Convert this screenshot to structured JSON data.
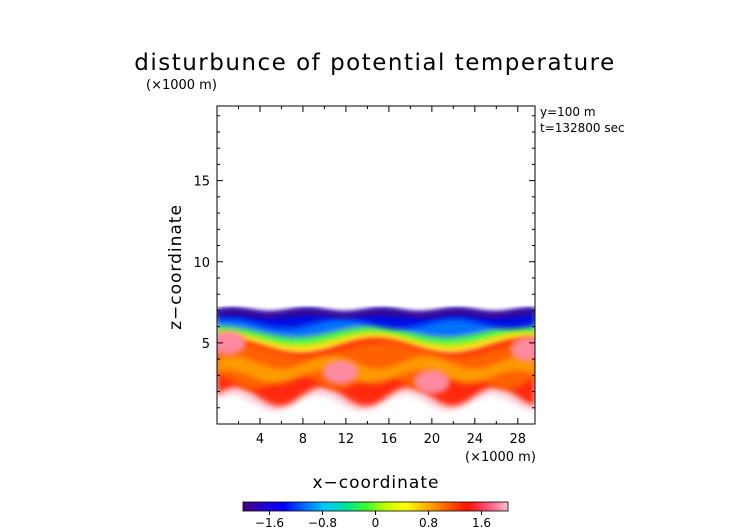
{
  "chart_data": {
    "type": "heatmap",
    "title": "disturbunce of potential temperature",
    "unit_note": "(×1000 m)",
    "annotations": [
      "y=100 m",
      "t=132800 sec"
    ],
    "xlabel": "x−coordinate",
    "xunit": "(×1000 m)",
    "ylabel": "z−coordinate",
    "xlim": [
      0,
      29.6
    ],
    "ylim": [
      0,
      19.6
    ],
    "xticks": [
      4,
      8,
      12,
      16,
      20,
      24,
      28
    ],
    "xtick_labels": [
      "4",
      "8",
      "12",
      "16",
      "20",
      "24",
      "28"
    ],
    "yticks": [
      5,
      10,
      15
    ],
    "ytick_labels": [
      "5",
      "10",
      "15"
    ],
    "colorbar": {
      "range": [
        -2.0,
        2.0
      ],
      "ticks": [
        -1.6,
        -0.8,
        0,
        0.8,
        1.6
      ],
      "tick_labels": [
        "−1.6",
        "−0.8",
        "0",
        "0.8",
        "1.6"
      ],
      "colors": [
        "#4a007e",
        "#2400d0",
        "#0000ff",
        "#0068ff",
        "#00c8ff",
        "#00e0a0",
        "#30ff30",
        "#c8ff00",
        "#ffff00",
        "#ffb000",
        "#ff6000",
        "#ff1000",
        "#ff5078",
        "#ffc0d0"
      ]
    },
    "field_description_values": {
      "top_boundary_z": 7.0,
      "bottom_boundary_z_approx": 1.5,
      "blue_layer_z": [
        5.5,
        7.0
      ],
      "red_layer_z": [
        1.5,
        5.0
      ]
    }
  }
}
